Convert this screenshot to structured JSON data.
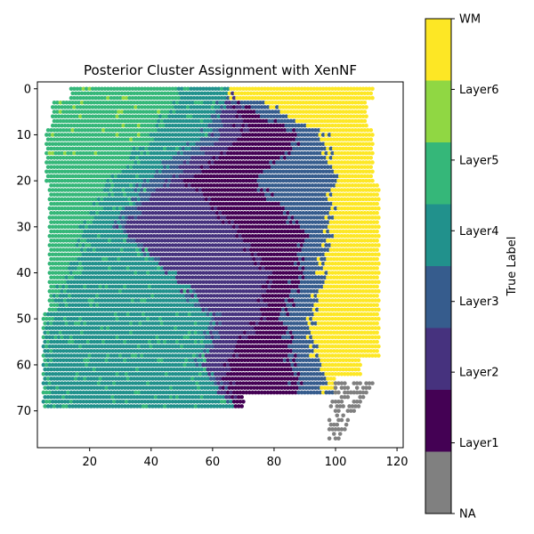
{
  "chart_data": {
    "type": "scatter",
    "title": "Posterior Cluster Assignment with XenNF",
    "xlabel": "",
    "ylabel": "",
    "xlim": [
      3,
      122
    ],
    "ylim": [
      78,
      -1.5
    ],
    "y_inverted": true,
    "x_ticks": [
      20,
      40,
      60,
      80,
      100,
      120
    ],
    "y_ticks": [
      0,
      10,
      20,
      30,
      40,
      50,
      60,
      70
    ],
    "grid": false,
    "colorbar": {
      "label": "True Label",
      "categories": [
        "NA",
        "Layer1",
        "Layer2",
        "Layer3",
        "Layer4",
        "Layer5",
        "Layer6",
        "WM"
      ],
      "colors": [
        "#808080",
        "#440154",
        "#46327e",
        "#365c8d",
        "#21918c",
        "#35b779",
        "#90d743",
        "#fde725"
      ]
    },
    "marker": "hexagonal grid spots, one per tissue spot",
    "spot_spacing": {
      "dx": 1.0,
      "dy": 1.0,
      "odd_row_offset": 0.5
    },
    "region_approximation": {
      "tissue_rows": [
        {
          "rows": [
            0,
            2
          ],
          "x": [
            14,
            112
          ]
        },
        {
          "rows": [
            3,
            8
          ],
          "x": [
            8,
            110
          ]
        },
        {
          "rows": [
            9,
            20
          ],
          "x": [
            6,
            112
          ]
        },
        {
          "rows": [
            21,
            48
          ],
          "x": [
            7,
            114
          ]
        },
        {
          "rows": [
            49,
            58
          ],
          "x": [
            5,
            114
          ]
        },
        {
          "rows": [
            59,
            62
          ],
          "x": [
            5,
            108
          ]
        },
        {
          "rows": [
            63,
            66
          ],
          "x": [
            5,
            100
          ]
        },
        {
          "rows": [
            67,
            69
          ],
          "x": [
            5,
            70
          ]
        }
      ],
      "layer_boundaries_by_row": [
        {
          "row": 0,
          "L5": 14,
          "L4": 50,
          "L3": 66,
          "L2": 66,
          "L1": 66,
          "WM": 68
        },
        {
          "row": 10,
          "L5": 8,
          "L4": 40,
          "L3": 58,
          "L2": 62,
          "L1": 70,
          "WM": 96
        },
        {
          "row": 20,
          "L5": 8,
          "L4": 28,
          "L3": 38,
          "L2": 46,
          "L1": 52,
          "WM": 100
        },
        {
          "row": 30,
          "L5": 8,
          "L4": 18,
          "L3": 28,
          "L2": 30,
          "L1": 66,
          "WM": 98
        },
        {
          "row": 40,
          "L5": 8,
          "L4": 14,
          "L3": 46,
          "L2": 46,
          "L1": 78,
          "WM": 96
        },
        {
          "row": 50,
          "L5": 6,
          "L4": 6,
          "L3": 60,
          "L2": 62,
          "L1": 76,
          "WM": 92
        },
        {
          "row": 60,
          "L5": 5,
          "L4": 5,
          "L3": 56,
          "L2": 58,
          "L1": 64,
          "WM": 94
        },
        {
          "row": 69,
          "L5": 5,
          "L4": 5,
          "L3": 66,
          "L2": 66,
          "L1": 66,
          "WM": 100
        }
      ],
      "na_cluster": {
        "x": [
          98,
          113
        ],
        "y": [
          64,
          76
        ]
      }
    }
  }
}
